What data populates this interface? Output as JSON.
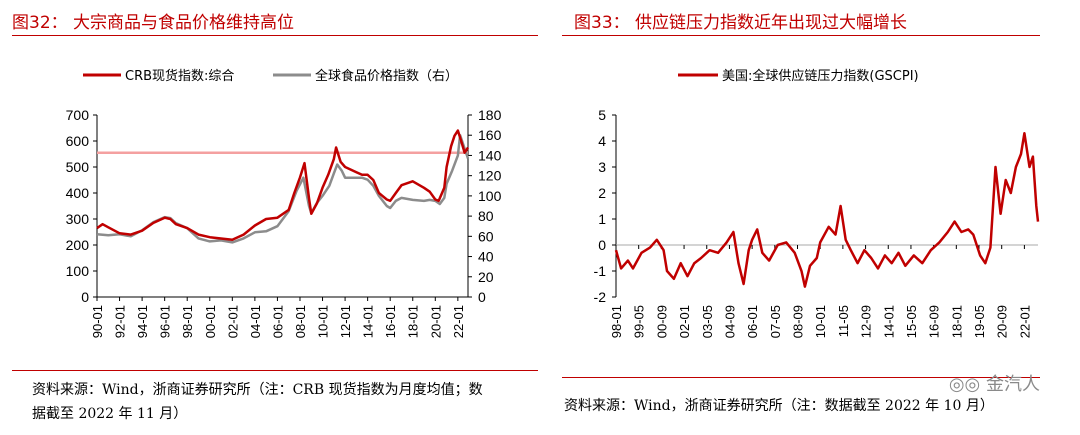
{
  "left": {
    "title": "图32： 大宗商品与食品价格维持高位",
    "source_line1": "资料来源：Wind，浙商证券研究所（注：CRB 现货指数为月度均值；数",
    "source_line2": "据截至 2022 年 11 月）"
  },
  "right": {
    "title": "图33： 供应链压力指数近年出现过大幅增长",
    "source": "资料来源：Wind，浙商证券研究所（注：数据截至 2022 年 10 月）"
  },
  "watermark": "金汽人",
  "colors": {
    "red": "#c00000",
    "gray": "#8c8c8c",
    "refline": "#f4a0a0"
  },
  "chart_data": [
    {
      "type": "line",
      "xlabels": [
        "90-01",
        "92-01",
        "94-01",
        "96-01",
        "98-01",
        "00-01",
        "02-01",
        "04-01",
        "06-01",
        "08-01",
        "10-01",
        "12-01",
        "14-01",
        "16-01",
        "18-01",
        "20-01",
        "22-01"
      ],
      "x_range": [
        1990,
        2022.9
      ],
      "ylim": [
        0,
        700
      ],
      "yticks": [
        0,
        100,
        200,
        300,
        400,
        500,
        600,
        700
      ],
      "y2lim": [
        0,
        180
      ],
      "y2ticks": [
        0,
        20,
        40,
        60,
        80,
        100,
        120,
        140,
        160,
        180
      ],
      "reference_line": 555,
      "series": [
        {
          "name": "CRB现货指数:综合",
          "axis": "left",
          "color": "#c00000",
          "points": [
            [
              1990,
              265
            ],
            [
              1990.5,
              280
            ],
            [
              1991,
              268
            ],
            [
              1992,
              245
            ],
            [
              1993,
              240
            ],
            [
              1994,
              255
            ],
            [
              1995,
              285
            ],
            [
              1996,
              305
            ],
            [
              1996.5,
              300
            ],
            [
              1997,
              280
            ],
            [
              1998,
              265
            ],
            [
              1999,
              240
            ],
            [
              2000,
              230
            ],
            [
              2001,
              225
            ],
            [
              2002,
              220
            ],
            [
              2003,
              240
            ],
            [
              2004,
              275
            ],
            [
              2005,
              300
            ],
            [
              2006,
              305
            ],
            [
              2007,
              335
            ],
            [
              2007.5,
              400
            ],
            [
              2008,
              460
            ],
            [
              2008.4,
              515
            ],
            [
              2008.8,
              380
            ],
            [
              2009,
              320
            ],
            [
              2009.5,
              360
            ],
            [
              2010,
              420
            ],
            [
              2010.5,
              470
            ],
            [
              2011,
              530
            ],
            [
              2011.2,
              575
            ],
            [
              2011.6,
              520
            ],
            [
              2012,
              500
            ],
            [
              2013,
              480
            ],
            [
              2013.5,
              470
            ],
            [
              2014,
              470
            ],
            [
              2014.5,
              450
            ],
            [
              2015,
              400
            ],
            [
              2015.7,
              375
            ],
            [
              2016,
              370
            ],
            [
              2016.5,
              400
            ],
            [
              2017,
              430
            ],
            [
              2018,
              445
            ],
            [
              2019,
              420
            ],
            [
              2019.5,
              405
            ],
            [
              2020,
              375
            ],
            [
              2020.3,
              370
            ],
            [
              2020.8,
              420
            ],
            [
              2021,
              500
            ],
            [
              2021.4,
              580
            ],
            [
              2021.7,
              620
            ],
            [
              2022,
              640
            ],
            [
              2022.3,
              600
            ],
            [
              2022.6,
              555
            ],
            [
              2022.9,
              575
            ]
          ]
        },
        {
          "name": "全球食品价格指数（右）",
          "axis": "right",
          "color": "#8c8c8c",
          "points": [
            [
              1990,
              62
            ],
            [
              1991,
              61
            ],
            [
              1992,
              62
            ],
            [
              1993,
              60
            ],
            [
              1994,
              66
            ],
            [
              1995,
              74
            ],
            [
              1996,
              79
            ],
            [
              1996.5,
              78
            ],
            [
              1997,
              73
            ],
            [
              1998,
              68
            ],
            [
              1999,
              58
            ],
            [
              2000,
              55
            ],
            [
              2001,
              56
            ],
            [
              2002,
              54
            ],
            [
              2003,
              58
            ],
            [
              2004,
              64
            ],
            [
              2005,
              65
            ],
            [
              2006,
              70
            ],
            [
              2007,
              85
            ],
            [
              2007.7,
              105
            ],
            [
              2008.3,
              118
            ],
            [
              2008.8,
              90
            ],
            [
              2009,
              83
            ],
            [
              2009.5,
              93
            ],
            [
              2010,
              100
            ],
            [
              2010.6,
              110
            ],
            [
              2011,
              122
            ],
            [
              2011.3,
              131
            ],
            [
              2011.7,
              125
            ],
            [
              2012,
              118
            ],
            [
              2013,
              118
            ],
            [
              2013.5,
              118
            ],
            [
              2014,
              116
            ],
            [
              2014.5,
              110
            ],
            [
              2015,
              100
            ],
            [
              2015.7,
              90
            ],
            [
              2016,
              88
            ],
            [
              2016.5,
              95
            ],
            [
              2017,
              98
            ],
            [
              2018,
              96
            ],
            [
              2019,
              95
            ],
            [
              2019.5,
              96
            ],
            [
              2020,
              95
            ],
            [
              2020.4,
              92
            ],
            [
              2020.8,
              98
            ],
            [
              2021,
              112
            ],
            [
              2021.5,
              125
            ],
            [
              2022,
              140
            ],
            [
              2022.2,
              160
            ],
            [
              2022.5,
              150
            ],
            [
              2022.9,
              137
            ]
          ]
        }
      ]
    },
    {
      "type": "line",
      "xlabels": [
        "98-01",
        "00-09",
        "03-05",
        "06-01",
        "08-09",
        "11-05",
        "14-01",
        "16-09",
        "19-05",
        "22-01"
      ],
      "xlabels_all": [
        "98-01",
        "99-05",
        "00-09",
        "02-01",
        "03-05",
        "04-09",
        "06-01",
        "07-05",
        "08-09",
        "10-01",
        "11-05",
        "12-09",
        "14-01",
        "15-05",
        "16-09",
        "18-01",
        "19-05",
        "20-09",
        "22-01"
      ],
      "x_range": [
        1998,
        2022.8
      ],
      "ylim": [
        -2,
        5
      ],
      "yticks": [
        -2,
        -1,
        0,
        1,
        2,
        3,
        4,
        5
      ],
      "series": [
        {
          "name": "美国:全球供应链压力指数(GSCPI)",
          "color": "#c00000",
          "points": [
            [
              1998,
              -0.2
            ],
            [
              1998.3,
              -0.9
            ],
            [
              1998.7,
              -0.6
            ],
            [
              1999,
              -0.9
            ],
            [
              1999.5,
              -0.3
            ],
            [
              2000,
              -0.1
            ],
            [
              2000.4,
              0.2
            ],
            [
              2000.8,
              -0.2
            ],
            [
              2001,
              -1.0
            ],
            [
              2001.4,
              -1.3
            ],
            [
              2001.8,
              -0.7
            ],
            [
              2002.2,
              -1.2
            ],
            [
              2002.6,
              -0.7
            ],
            [
              2003,
              -0.5
            ],
            [
              2003.5,
              -0.2
            ],
            [
              2004,
              -0.3
            ],
            [
              2004.5,
              0.1
            ],
            [
              2004.9,
              0.5
            ],
            [
              2005.2,
              -0.7
            ],
            [
              2005.5,
              -1.5
            ],
            [
              2005.8,
              -0.2
            ],
            [
              2006,
              0.2
            ],
            [
              2006.3,
              0.6
            ],
            [
              2006.6,
              -0.3
            ],
            [
              2007,
              -0.6
            ],
            [
              2007.5,
              0.0
            ],
            [
              2008,
              0.1
            ],
            [
              2008.5,
              -0.3
            ],
            [
              2008.9,
              -1.0
            ],
            [
              2009.1,
              -1.6
            ],
            [
              2009.4,
              -0.8
            ],
            [
              2009.8,
              -0.5
            ],
            [
              2010,
              0.1
            ],
            [
              2010.5,
              0.7
            ],
            [
              2010.9,
              0.4
            ],
            [
              2011.2,
              1.5
            ],
            [
              2011.5,
              0.2
            ],
            [
              2011.8,
              -0.2
            ],
            [
              2012.2,
              -0.7
            ],
            [
              2012.6,
              -0.2
            ],
            [
              2013,
              -0.5
            ],
            [
              2013.4,
              -0.9
            ],
            [
              2013.8,
              -0.4
            ],
            [
              2014.2,
              -0.7
            ],
            [
              2014.6,
              -0.3
            ],
            [
              2015,
              -0.8
            ],
            [
              2015.5,
              -0.4
            ],
            [
              2016,
              -0.7
            ],
            [
              2016.5,
              -0.2
            ],
            [
              2017,
              0.1
            ],
            [
              2017.5,
              0.5
            ],
            [
              2017.9,
              0.9
            ],
            [
              2018.3,
              0.5
            ],
            [
              2018.7,
              0.6
            ],
            [
              2019,
              0.4
            ],
            [
              2019.4,
              -0.4
            ],
            [
              2019.7,
              -0.7
            ],
            [
              2020,
              -0.1
            ],
            [
              2020.3,
              3.0
            ],
            [
              2020.6,
              1.2
            ],
            [
              2020.9,
              2.5
            ],
            [
              2021.2,
              2.0
            ],
            [
              2021.5,
              3.0
            ],
            [
              2021.8,
              3.5
            ],
            [
              2022,
              4.3
            ],
            [
              2022.3,
              3.0
            ],
            [
              2022.5,
              3.4
            ],
            [
              2022.7,
              1.5
            ],
            [
              2022.8,
              0.9
            ]
          ]
        }
      ]
    }
  ]
}
